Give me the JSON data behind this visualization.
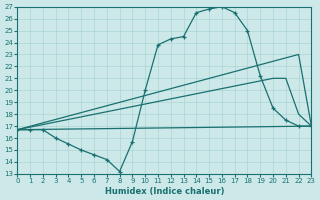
{
  "xlabel": "Humidex (Indice chaleur)",
  "bg_color": "#cce8e8",
  "line_color": "#1a7070",
  "grid_color": "#aad4d4",
  "xlim": [
    0,
    23
  ],
  "ylim": [
    13,
    27
  ],
  "xticks": [
    0,
    1,
    2,
    3,
    4,
    5,
    6,
    7,
    8,
    9,
    10,
    11,
    12,
    13,
    14,
    15,
    16,
    17,
    18,
    19,
    20,
    21,
    22,
    23
  ],
  "yticks": [
    13,
    14,
    15,
    16,
    17,
    18,
    19,
    20,
    21,
    22,
    23,
    24,
    25,
    26,
    27
  ],
  "line1_x": [
    0,
    1,
    2,
    3,
    4,
    5,
    6,
    7,
    8,
    9,
    10,
    11,
    12,
    13,
    14,
    15,
    16,
    17,
    18,
    19,
    20,
    21,
    22,
    23
  ],
  "line1_y": [
    16.7,
    16.7,
    16.7,
    16.0,
    15.5,
    15.0,
    14.6,
    14.2,
    13.2,
    15.7,
    20.0,
    23.8,
    24.3,
    24.5,
    26.5,
    26.8,
    27.0,
    26.5,
    25.0,
    21.2,
    18.5,
    17.5,
    17.0,
    17.0
  ],
  "line2_x": [
    0,
    22,
    23
  ],
  "line2_y": [
    16.7,
    23.0,
    17.0
  ],
  "line3_x": [
    0,
    20,
    21,
    22,
    23
  ],
  "line3_y": [
    16.7,
    21.0,
    21.0,
    18.0,
    17.0
  ],
  "line4_x": [
    0,
    23
  ],
  "line4_y": [
    16.7,
    17.0
  ]
}
